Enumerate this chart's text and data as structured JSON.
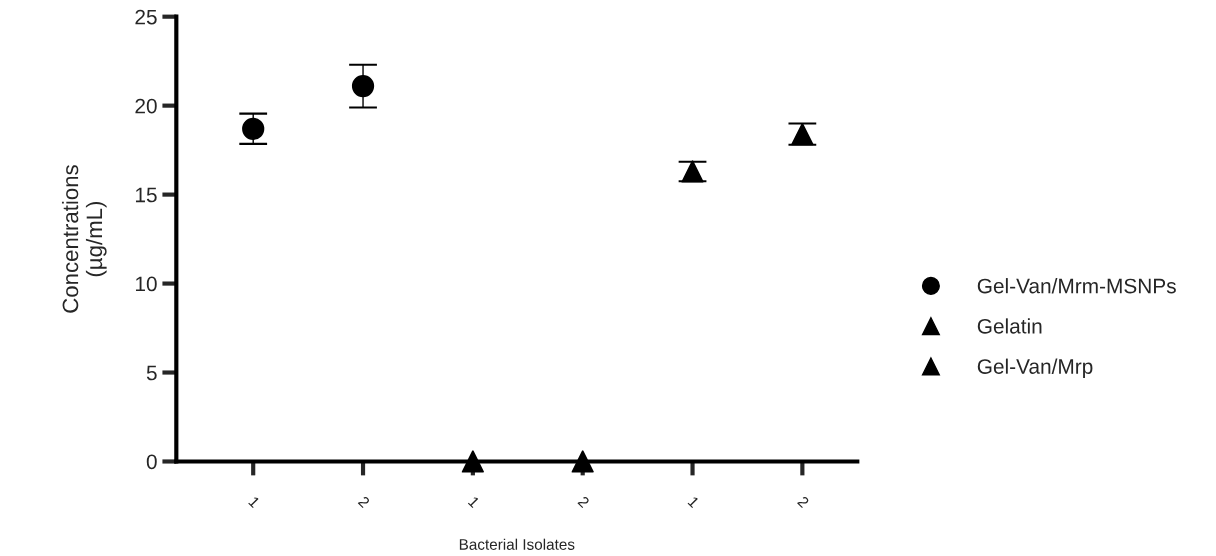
{
  "chart_data": {
    "type": "scatter",
    "xlabel": "Bacterial Isolates",
    "ylabel": "Concentrations\n(µg/mL)",
    "categories": [
      "1",
      "2",
      "1",
      "2",
      "1",
      "2"
    ],
    "series": [
      {
        "name": "Gel-Van/Mrm-MSNPs",
        "color": "#000000",
        "marker": "circle",
        "values": [
          18.7,
          21.1,
          null,
          null,
          null,
          null
        ],
        "errors": [
          0.85,
          1.2,
          null,
          null,
          null,
          null
        ]
      },
      {
        "name": "Gelatin",
        "color": "#000000",
        "marker": "triangle",
        "values": [
          null,
          null,
          0,
          0,
          null,
          null
        ]
      },
      {
        "name": "Gel-Van/Mrp",
        "color": "#000000",
        "marker": "triangle",
        "values": [
          null,
          null,
          null,
          null,
          16.3,
          18.4
        ],
        "errors": [
          null,
          null,
          null,
          null,
          0.55,
          0.6
        ]
      }
    ],
    "ylim": [
      0,
      25
    ],
    "yticks": [
      0,
      5,
      10,
      15,
      20,
      25
    ],
    "grid": false,
    "legend": "right"
  }
}
